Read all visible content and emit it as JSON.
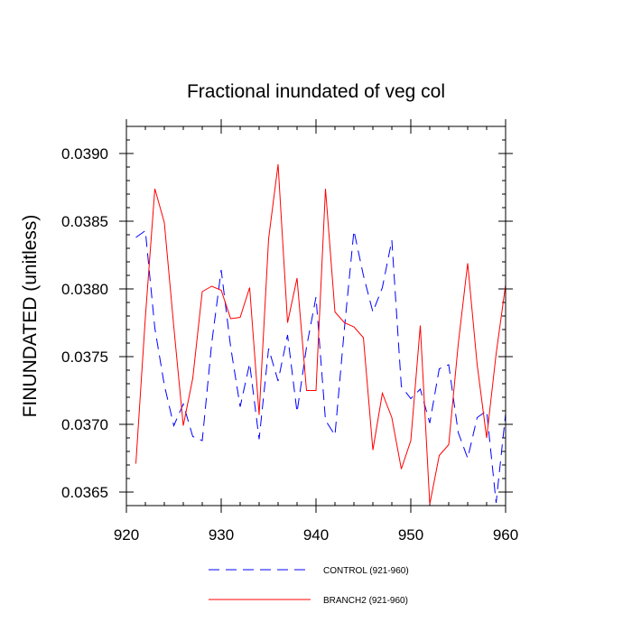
{
  "chart_data": {
    "type": "line",
    "title": "Fractional inundated of veg col",
    "xlabel": "",
    "ylabel": "FINUNDATED  (unitless)",
    "xlim": [
      920,
      960
    ],
    "ylim": [
      0.0364,
      0.0392
    ],
    "x_ticks": [
      920,
      930,
      940,
      950,
      960
    ],
    "x_tick_labels": [
      "920",
      "930",
      "940",
      "950",
      "960"
    ],
    "y_ticks": [
      0.0365,
      0.037,
      0.0375,
      0.038,
      0.0385,
      0.039
    ],
    "y_tick_labels": [
      "0.0365",
      "0.0370",
      "0.0375",
      "0.0380",
      "0.0385",
      "0.0390"
    ],
    "x": [
      921,
      922,
      923,
      924,
      925,
      926,
      927,
      928,
      929,
      930,
      931,
      932,
      933,
      934,
      935,
      936,
      937,
      938,
      939,
      940,
      941,
      942,
      943,
      944,
      945,
      946,
      947,
      948,
      949,
      950,
      951,
      952,
      953,
      954,
      955,
      956,
      957,
      958,
      959,
      960
    ],
    "series": [
      {
        "name": "CONTROL (921-960)",
        "color": "#0000ff",
        "dash": "dashed",
        "values": [
          0.03838,
          0.03843,
          0.03771,
          0.03729,
          0.03699,
          0.03715,
          0.03691,
          0.03688,
          0.0376,
          0.03814,
          0.03757,
          0.03713,
          0.03745,
          0.03689,
          0.03756,
          0.03732,
          0.03766,
          0.03709,
          0.03757,
          0.03794,
          0.03703,
          0.03692,
          0.03771,
          0.03843,
          0.0381,
          0.03783,
          0.03801,
          0.03836,
          0.03728,
          0.03719,
          0.03726,
          0.03701,
          0.03741,
          0.03744,
          0.03694,
          0.03675,
          0.03705,
          0.0371,
          0.03642,
          0.03708
        ]
      },
      {
        "name": "BRANCH2 (921-960)",
        "color": "#ff0000",
        "dash": "solid",
        "values": [
          0.03671,
          0.03779,
          0.03874,
          0.03849,
          0.03772,
          0.03699,
          0.03734,
          0.03798,
          0.03802,
          0.03799,
          0.03778,
          0.03779,
          0.03801,
          0.03707,
          0.03837,
          0.03892,
          0.03775,
          0.03808,
          0.03725,
          0.03725,
          0.03874,
          0.03783,
          0.03775,
          0.03772,
          0.03764,
          0.03681,
          0.03723,
          0.03705,
          0.03667,
          0.03688,
          0.03773,
          0.03641,
          0.03677,
          0.03685,
          0.03759,
          0.03819,
          0.03744,
          0.0369,
          0.03752,
          0.03803
        ]
      }
    ],
    "legend_position": "bottom-center"
  }
}
